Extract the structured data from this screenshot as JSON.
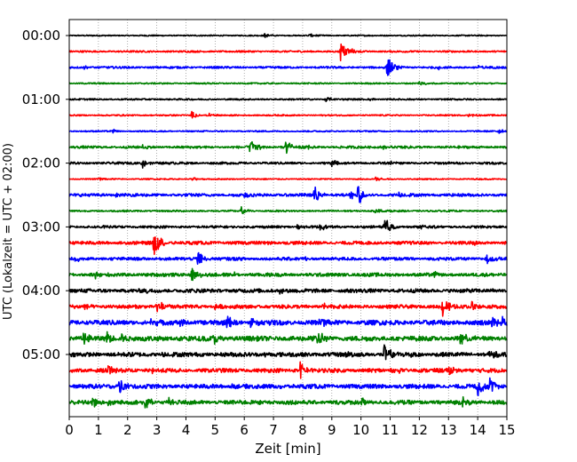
{
  "chart_data": {
    "type": "line",
    "title": "",
    "xlabel": "Zeit  [min]",
    "ylabel": "UTC (Lokalzeit = UTC + 02:00)",
    "x_range": [
      0,
      15
    ],
    "x_ticks": [
      "0",
      "1",
      "2",
      "3",
      "4",
      "5",
      "6",
      "7",
      "8",
      "9",
      "10",
      "11",
      "12",
      "13",
      "14",
      "15"
    ],
    "y_tick_labels": [
      "00:00",
      "01:00",
      "02:00",
      "03:00",
      "04:00",
      "05:00"
    ],
    "row_minutes_step": 15,
    "grid": "vertical dotted",
    "colors_cycle": [
      "#000000",
      "#ff0000",
      "#0000ff",
      "#008000"
    ],
    "series": [
      {
        "start": "00:00",
        "color": "#000000",
        "noise": 0.7,
        "events": [
          [
            6.7,
            2.5
          ],
          [
            8.2,
            2.2
          ]
        ]
      },
      {
        "start": "00:15",
        "color": "#ff0000",
        "noise": 1.0,
        "events": [
          [
            9.3,
            11
          ],
          [
            9.6,
            3
          ]
        ]
      },
      {
        "start": "00:30",
        "color": "#0000ff",
        "noise": 1.2,
        "events": [
          [
            10.9,
            13
          ],
          [
            12.6,
            2.5
          ],
          [
            14.0,
            2.5
          ],
          [
            0.5,
            2
          ]
        ]
      },
      {
        "start": "00:45",
        "color": "#008000",
        "noise": 0.8,
        "events": [
          [
            12.0,
            4
          ]
        ]
      },
      {
        "start": "01:00",
        "color": "#000000",
        "noise": 0.9,
        "events": [
          [
            8.8,
            3
          ],
          [
            10.3,
            2.5
          ]
        ]
      },
      {
        "start": "01:15",
        "color": "#ff0000",
        "noise": 0.8,
        "events": [
          [
            4.2,
            4
          ],
          [
            4.8,
            2
          ],
          [
            13.7,
            2.5
          ]
        ]
      },
      {
        "start": "01:30",
        "color": "#0000ff",
        "noise": 0.8,
        "events": [
          [
            1.5,
            2
          ],
          [
            14.7,
            3
          ]
        ]
      },
      {
        "start": "01:45",
        "color": "#008000",
        "noise": 1.4,
        "events": [
          [
            6.2,
            11
          ],
          [
            7.4,
            9
          ],
          [
            2.5,
            2.5
          ],
          [
            8.2,
            2.5
          ],
          [
            10.7,
            3
          ]
        ]
      },
      {
        "start": "02:00",
        "color": "#000000",
        "noise": 1.3,
        "events": [
          [
            2.5,
            6
          ],
          [
            9.0,
            3
          ],
          [
            11.0,
            2.5
          ]
        ]
      },
      {
        "start": "02:15",
        "color": "#ff0000",
        "noise": 0.7,
        "events": [
          [
            1.0,
            2.5
          ],
          [
            4.2,
            2
          ],
          [
            10.5,
            2.5
          ]
        ]
      },
      {
        "start": "02:30",
        "color": "#0000ff",
        "noise": 1.7,
        "events": [
          [
            8.4,
            10
          ],
          [
            9.9,
            14
          ],
          [
            9.6,
            5
          ],
          [
            6.0,
            3
          ],
          [
            1.6,
            3
          ],
          [
            11.3,
            3
          ]
        ]
      },
      {
        "start": "02:45",
        "color": "#008000",
        "noise": 1.0,
        "events": [
          [
            5.9,
            4
          ],
          [
            10.5,
            3
          ]
        ]
      },
      {
        "start": "03:00",
        "color": "#000000",
        "noise": 1.4,
        "events": [
          [
            10.8,
            12
          ],
          [
            8.6,
            4
          ],
          [
            7.8,
            2
          ],
          [
            12.0,
            2.5
          ],
          [
            1.1,
            2
          ]
        ]
      },
      {
        "start": "03:15",
        "color": "#ff0000",
        "noise": 1.9,
        "events": [
          [
            2.9,
            15
          ],
          [
            3.0,
            6
          ],
          [
            6.8,
            2.5
          ],
          [
            13.8,
            3
          ]
        ]
      },
      {
        "start": "03:30",
        "color": "#0000ff",
        "noise": 1.8,
        "events": [
          [
            4.4,
            10
          ],
          [
            0.2,
            3
          ],
          [
            14.3,
            5
          ],
          [
            8.0,
            2.5
          ]
        ]
      },
      {
        "start": "03:45",
        "color": "#008000",
        "noise": 2.0,
        "events": [
          [
            4.2,
            8
          ],
          [
            0.9,
            3.5
          ],
          [
            5.6,
            3
          ],
          [
            12.5,
            3
          ]
        ]
      },
      {
        "start": "04:00",
        "color": "#000000",
        "noise": 2.2,
        "events": [
          [
            14.5,
            4
          ],
          [
            2.6,
            3
          ],
          [
            7.2,
            3
          ]
        ]
      },
      {
        "start": "04:15",
        "color": "#ff0000",
        "noise": 2.1,
        "events": [
          [
            3.0,
            10
          ],
          [
            12.8,
            11
          ],
          [
            13.8,
            7
          ],
          [
            8.7,
            4
          ],
          [
            0.5,
            3
          ],
          [
            5.0,
            3
          ]
        ]
      },
      {
        "start": "04:30",
        "color": "#0000ff",
        "noise": 2.8,
        "events": [
          [
            5.4,
            8
          ],
          [
            6.2,
            8
          ],
          [
            8.6,
            10
          ],
          [
            14.8,
            11
          ],
          [
            14.5,
            8
          ],
          [
            3.8,
            4
          ],
          [
            2.8,
            4
          ]
        ]
      },
      {
        "start": "04:45",
        "color": "#008000",
        "noise": 2.8,
        "events": [
          [
            0.5,
            9
          ],
          [
            1.3,
            8
          ],
          [
            1.8,
            5
          ],
          [
            4.9,
            7
          ],
          [
            8.5,
            12
          ],
          [
            13.4,
            7
          ],
          [
            3.8,
            3
          ]
        ]
      },
      {
        "start": "05:00",
        "color": "#000000",
        "noise": 2.5,
        "events": [
          [
            10.8,
            12
          ],
          [
            11.6,
            6
          ],
          [
            14.4,
            6
          ],
          [
            3.2,
            3.5
          ],
          [
            6.7,
            3.5
          ],
          [
            9.5,
            3
          ]
        ]
      },
      {
        "start": "05:15",
        "color": "#ff0000",
        "noise": 2.3,
        "events": [
          [
            1.3,
            6
          ],
          [
            7.9,
            12
          ],
          [
            13.0,
            6
          ],
          [
            2.8,
            3
          ],
          [
            11.2,
            3
          ]
        ]
      },
      {
        "start": "05:30",
        "color": "#0000ff",
        "noise": 2.5,
        "events": [
          [
            1.7,
            11
          ],
          [
            14.0,
            11
          ],
          [
            14.4,
            13
          ],
          [
            7.2,
            3
          ],
          [
            10.5,
            3
          ],
          [
            5.6,
            3
          ]
        ]
      },
      {
        "start": "05:45",
        "color": "#008000",
        "noise": 2.4,
        "events": [
          [
            0.8,
            7
          ],
          [
            1.3,
            5
          ],
          [
            2.6,
            7
          ],
          [
            3.4,
            6
          ],
          [
            10.0,
            5
          ],
          [
            13.5,
            6
          ],
          [
            6.5,
            3
          ]
        ]
      }
    ]
  }
}
